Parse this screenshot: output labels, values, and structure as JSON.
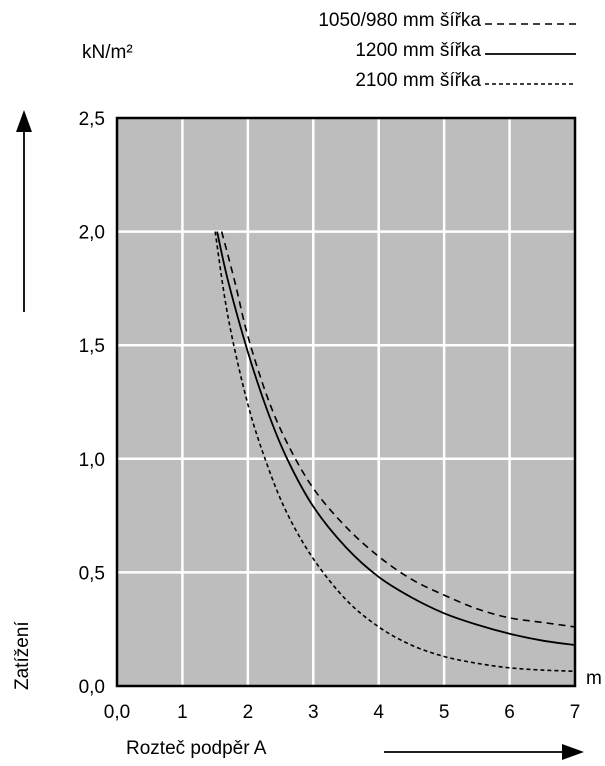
{
  "chart_data": {
    "type": "line",
    "title": "",
    "xlabel": "Rozteč podpěr A",
    "ylabel": "Zatížení",
    "x_unit": "m",
    "y_unit": "kN/m²",
    "xlim": [
      0,
      7
    ],
    "ylim": [
      0,
      2.5
    ],
    "x_ticks": [
      "0,0",
      "1",
      "2",
      "3",
      "4",
      "5",
      "6",
      "7"
    ],
    "y_ticks": [
      "0,0",
      "0,5",
      "1,0",
      "1,5",
      "2,0",
      "2,5"
    ],
    "grid": true,
    "plot_background": "#bdbdbd",
    "grid_color": "#ffffff",
    "legend_position": "top-right",
    "series": [
      {
        "name": "1050/980 mm šířka",
        "style": "dashed",
        "color": "#000000",
        "points": [
          [
            1.6,
            2.0
          ],
          [
            1.8,
            1.78
          ],
          [
            2.0,
            1.54
          ],
          [
            2.3,
            1.27
          ],
          [
            2.6,
            1.07
          ],
          [
            3.0,
            0.87
          ],
          [
            3.5,
            0.7
          ],
          [
            4.0,
            0.57
          ],
          [
            4.5,
            0.47
          ],
          [
            5.0,
            0.4
          ],
          [
            5.5,
            0.34
          ],
          [
            6.0,
            0.3
          ],
          [
            6.5,
            0.28
          ],
          [
            7.0,
            0.26
          ]
        ]
      },
      {
        "name": "1200 mm šířka",
        "style": "solid",
        "color": "#000000",
        "points": [
          [
            1.53,
            2.0
          ],
          [
            1.7,
            1.78
          ],
          [
            2.0,
            1.47
          ],
          [
            2.3,
            1.21
          ],
          [
            2.6,
            1.0
          ],
          [
            3.0,
            0.79
          ],
          [
            3.5,
            0.61
          ],
          [
            4.0,
            0.48
          ],
          [
            4.5,
            0.39
          ],
          [
            5.0,
            0.32
          ],
          [
            5.5,
            0.27
          ],
          [
            6.0,
            0.23
          ],
          [
            6.5,
            0.2
          ],
          [
            7.0,
            0.18
          ]
        ]
      },
      {
        "name": "2100 mm šířka",
        "style": "dotted",
        "color": "#000000",
        "points": [
          [
            1.5,
            2.0
          ],
          [
            1.7,
            1.62
          ],
          [
            2.0,
            1.24
          ],
          [
            2.3,
            0.97
          ],
          [
            2.6,
            0.76
          ],
          [
            3.0,
            0.56
          ],
          [
            3.5,
            0.38
          ],
          [
            4.0,
            0.26
          ],
          [
            4.5,
            0.18
          ],
          [
            5.0,
            0.13
          ],
          [
            5.5,
            0.1
          ],
          [
            6.0,
            0.08
          ],
          [
            6.5,
            0.07
          ],
          [
            7.0,
            0.065
          ]
        ]
      }
    ]
  }
}
